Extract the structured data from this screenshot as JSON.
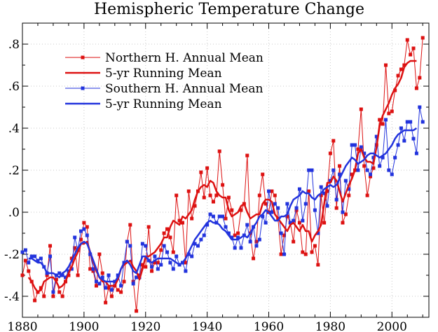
{
  "chart_data": {
    "type": "line",
    "title": "Hemispheric Temperature Change",
    "xlabel": "",
    "ylabel": "",
    "xlim": [
      1880,
      2012
    ],
    "ylim": [
      -0.5,
      0.9
    ],
    "x_ticks": [
      1880,
      1900,
      1920,
      1940,
      1960,
      1980,
      2000
    ],
    "x_tick_labels": [
      "1880",
      "1900",
      "1920",
      "1940",
      "1960",
      "1980",
      "2000"
    ],
    "y_ticks": [
      -0.4,
      -0.2,
      0.0,
      0.2,
      0.4,
      0.6,
      0.8
    ],
    "y_tick_labels": [
      "-.4",
      "-.2",
      ".0",
      ".2",
      ".4",
      ".6",
      ".8"
    ],
    "grid": true,
    "legend_position": "top-left",
    "colors": {
      "north": "#dd1111",
      "south": "#2233dd",
      "grid": "#c8c8c8"
    },
    "x": [
      1880,
      1881,
      1882,
      1883,
      1884,
      1885,
      1886,
      1887,
      1888,
      1889,
      1890,
      1891,
      1892,
      1893,
      1894,
      1895,
      1896,
      1897,
      1898,
      1899,
      1900,
      1901,
      1902,
      1903,
      1904,
      1905,
      1906,
      1907,
      1908,
      1909,
      1910,
      1911,
      1912,
      1913,
      1914,
      1915,
      1916,
      1917,
      1918,
      1919,
      1920,
      1921,
      1922,
      1923,
      1924,
      1925,
      1926,
      1927,
      1928,
      1929,
      1930,
      1931,
      1932,
      1933,
      1934,
      1935,
      1936,
      1937,
      1938,
      1939,
      1940,
      1941,
      1942,
      1943,
      1944,
      1945,
      1946,
      1947,
      1948,
      1949,
      1950,
      1951,
      1952,
      1953,
      1954,
      1955,
      1956,
      1957,
      1958,
      1959,
      1960,
      1961,
      1962,
      1963,
      1964,
      1965,
      1966,
      1967,
      1968,
      1969,
      1970,
      1971,
      1972,
      1973,
      1974,
      1975,
      1976,
      1977,
      1978,
      1979,
      1980,
      1981,
      1982,
      1983,
      1984,
      1985,
      1986,
      1987,
      1988,
      1989,
      1990,
      1991,
      1992,
      1993,
      1994,
      1995,
      1996,
      1997,
      1998,
      1999,
      2000,
      2001,
      2002,
      2003,
      2004,
      2005,
      2006,
      2007,
      2008,
      2009,
      2010
    ],
    "series": [
      {
        "name": "Northern H. Annual Mean",
        "values": [
          -0.3,
          -0.23,
          -0.28,
          -0.33,
          -0.42,
          -0.38,
          -0.36,
          -0.4,
          -0.3,
          -0.16,
          -0.4,
          -0.32,
          -0.38,
          -0.4,
          -0.33,
          -0.3,
          -0.22,
          -0.17,
          -0.3,
          -0.13,
          -0.05,
          -0.07,
          -0.27,
          -0.28,
          -0.35,
          -0.2,
          -0.29,
          -0.43,
          -0.36,
          -0.4,
          -0.35,
          -0.37,
          -0.38,
          -0.33,
          -0.14,
          -0.06,
          -0.33,
          -0.47,
          -0.3,
          -0.25,
          -0.26,
          -0.07,
          -0.28,
          -0.24,
          -0.24,
          -0.18,
          -0.1,
          -0.08,
          -0.12,
          -0.19,
          0.08,
          -0.04,
          -0.05,
          -0.24,
          0.1,
          -0.03,
          0.03,
          0.1,
          0.19,
          0.07,
          0.21,
          0.08,
          0.05,
          0.08,
          0.29,
          0.13,
          -0.03,
          0.07,
          0.01,
          -0.11,
          -0.1,
          0.01,
          0.04,
          0.27,
          -0.1,
          -0.22,
          -0.14,
          0.08,
          0.18,
          0.04,
          0.0,
          0.1,
          0.08,
          -0.03,
          -0.2,
          -0.11,
          -0.02,
          -0.05,
          -0.14,
          0.01,
          -0.05,
          -0.19,
          -0.2,
          0.1,
          -0.19,
          -0.16,
          -0.25,
          0.08,
          -0.05,
          0.1,
          0.28,
          0.34,
          0.02,
          0.22,
          -0.05,
          -0.01,
          0.08,
          0.18,
          0.2,
          0.3,
          0.49,
          0.22,
          0.08,
          0.17,
          0.21,
          0.32,
          0.44,
          0.42,
          0.7,
          0.47,
          0.48,
          0.58,
          0.65,
          0.68,
          0.7,
          0.82,
          0.75,
          0.78,
          0.59,
          0.64,
          0.83
        ]
      },
      {
        "name": "5-yr Running Mean",
        "values": [
          null,
          null,
          -0.31,
          -0.33,
          -0.36,
          -0.38,
          -0.37,
          -0.33,
          -0.32,
          -0.31,
          -0.31,
          -0.33,
          -0.36,
          -0.35,
          -0.33,
          -0.29,
          -0.26,
          -0.22,
          -0.19,
          -0.15,
          -0.15,
          -0.14,
          -0.19,
          -0.24,
          -0.28,
          -0.31,
          -0.33,
          -0.33,
          -0.35,
          -0.35,
          -0.35,
          -0.32,
          -0.27,
          -0.25,
          -0.24,
          -0.23,
          -0.26,
          -0.28,
          -0.32,
          -0.27,
          -0.21,
          -0.21,
          -0.2,
          -0.19,
          -0.17,
          -0.15,
          -0.12,
          -0.12,
          -0.07,
          -0.04,
          -0.05,
          -0.06,
          -0.02,
          -0.03,
          -0.01,
          0.01,
          0.06,
          0.1,
          0.12,
          0.13,
          0.12,
          0.15,
          0.14,
          0.1,
          0.08,
          0.07,
          0.07,
          0.01,
          -0.02,
          -0.01,
          0.0,
          0.03,
          0.04,
          0.0,
          -0.03,
          -0.02,
          -0.01,
          -0.01,
          0.04,
          0.06,
          0.06,
          0.05,
          -0.01,
          -0.03,
          -0.05,
          -0.07,
          -0.09,
          -0.06,
          -0.05,
          -0.07,
          -0.09,
          -0.06,
          -0.09,
          -0.09,
          -0.14,
          -0.11,
          -0.09,
          -0.06,
          0.04,
          0.14,
          0.14,
          0.17,
          0.15,
          0.1,
          0.05,
          0.09,
          0.13,
          0.16,
          0.2,
          0.28,
          0.3,
          0.26,
          0.24,
          0.24,
          0.23,
          0.31,
          0.41,
          0.46,
          0.49,
          0.52,
          0.56,
          0.59,
          0.61,
          0.64,
          0.69,
          0.71,
          0.72,
          0.72,
          0.72,
          null,
          null
        ]
      },
      {
        "name": "Southern H. Annual Mean",
        "values": [
          -0.19,
          -0.18,
          -0.24,
          -0.21,
          -0.21,
          -0.23,
          -0.22,
          -0.26,
          -0.29,
          -0.21,
          -0.38,
          -0.3,
          -0.29,
          -0.3,
          -0.31,
          -0.28,
          -0.27,
          -0.12,
          -0.18,
          -0.09,
          -0.08,
          -0.11,
          -0.2,
          -0.27,
          -0.33,
          -0.34,
          -0.31,
          -0.36,
          -0.3,
          -0.37,
          -0.33,
          -0.3,
          -0.35,
          -0.24,
          -0.14,
          -0.16,
          -0.34,
          -0.31,
          -0.31,
          -0.15,
          -0.16,
          -0.23,
          -0.26,
          -0.21,
          -0.27,
          -0.25,
          -0.16,
          -0.19,
          -0.24,
          -0.27,
          -0.21,
          -0.25,
          -0.24,
          -0.28,
          -0.2,
          -0.21,
          -0.15,
          -0.16,
          -0.13,
          -0.11,
          -0.06,
          -0.01,
          -0.02,
          -0.05,
          -0.02,
          -0.02,
          -0.07,
          -0.1,
          -0.12,
          -0.17,
          -0.12,
          -0.17,
          -0.11,
          -0.06,
          -0.14,
          -0.07,
          -0.16,
          -0.13,
          -0.02,
          -0.05,
          0.1,
          0.0,
          0.04,
          0.02,
          -0.1,
          -0.2,
          0.04,
          -0.05,
          -0.04,
          0.02,
          0.11,
          -0.04,
          0.04,
          0.2,
          0.2,
          0.01,
          -0.1,
          0.12,
          0.09,
          0.03,
          0.15,
          0.2,
          0.06,
          0.18,
          0.0,
          0.15,
          0.11,
          0.32,
          0.32,
          0.2,
          0.31,
          0.28,
          0.2,
          0.18,
          0.26,
          0.36,
          0.22,
          0.26,
          0.44,
          0.2,
          0.18,
          0.26,
          0.32,
          0.4,
          0.34,
          0.43,
          0.43,
          0.35,
          0.28,
          0.5,
          0.43
        ]
      },
      {
        "name": "5-yr Running Mean",
        "values": [
          null,
          null,
          -0.22,
          -0.22,
          -0.23,
          -0.24,
          -0.24,
          -0.26,
          -0.29,
          -0.29,
          -0.29,
          -0.3,
          -0.31,
          -0.29,
          -0.28,
          -0.26,
          -0.23,
          -0.2,
          -0.17,
          -0.15,
          -0.14,
          -0.15,
          -0.19,
          -0.23,
          -0.27,
          -0.31,
          -0.32,
          -0.33,
          -0.33,
          -0.33,
          -0.33,
          -0.31,
          -0.27,
          -0.24,
          -0.23,
          -0.25,
          -0.28,
          -0.29,
          -0.25,
          -0.21,
          -0.21,
          -0.23,
          -0.24,
          -0.23,
          -0.22,
          -0.22,
          -0.22,
          -0.22,
          -0.22,
          -0.23,
          -0.24,
          -0.25,
          -0.24,
          -0.22,
          -0.19,
          -0.16,
          -0.13,
          -0.11,
          -0.09,
          -0.07,
          -0.05,
          -0.04,
          -0.05,
          -0.05,
          -0.06,
          -0.08,
          -0.09,
          -0.11,
          -0.13,
          -0.13,
          -0.13,
          -0.12,
          -0.11,
          -0.12,
          -0.1,
          -0.07,
          -0.05,
          -0.02,
          -0.01,
          0.01,
          0.0,
          -0.02,
          -0.04,
          -0.04,
          -0.02,
          -0.02,
          -0.01,
          0.03,
          0.06,
          0.07,
          0.08,
          0.1,
          0.09,
          0.09,
          0.07,
          0.06,
          0.08,
          0.09,
          0.11,
          0.12,
          0.13,
          0.12,
          0.13,
          0.16,
          0.19,
          0.22,
          0.24,
          0.26,
          0.25,
          0.23,
          0.24,
          0.25,
          0.27,
          0.28,
          0.28,
          0.27,
          0.26,
          0.27,
          0.28,
          0.3,
          0.32,
          0.35,
          0.37,
          0.38,
          0.39,
          0.39,
          0.39,
          0.39,
          0.4,
          null,
          null
        ]
      }
    ]
  }
}
